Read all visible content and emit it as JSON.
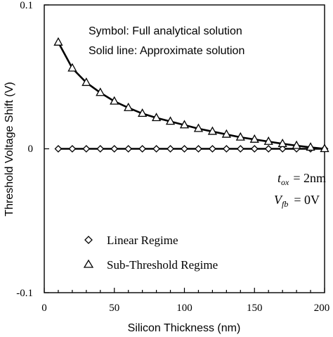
{
  "chart_data": {
    "type": "line",
    "xlabel": "Silicon Thickness (nm)",
    "ylabel": "Threshold Voltage Shift (V)",
    "xlim": [
      0,
      200
    ],
    "ylim": [
      -0.1,
      0.1
    ],
    "x_ticks": [
      "0",
      "50",
      "100",
      "150",
      "200"
    ],
    "y_ticks": [
      "0.1",
      "0",
      "-0.1"
    ],
    "notes": [
      "Symbol: Full analytical solution",
      "Solid line: Approximate solution"
    ],
    "params": [
      {
        "sym": "t",
        "sub": "ox",
        "value": "= 2nm"
      },
      {
        "sym": "V",
        "sub": "fb",
        "value": "= 0V"
      }
    ],
    "series": [
      {
        "name": "Linear Regime",
        "marker": "diamond",
        "x": [
          10,
          20,
          30,
          40,
          50,
          60,
          70,
          80,
          90,
          100,
          110,
          120,
          130,
          140,
          150,
          160,
          170,
          180,
          190,
          200
        ],
        "y": [
          0,
          0,
          0,
          0,
          0,
          0,
          0,
          0,
          0,
          0,
          0,
          0,
          0,
          0,
          0,
          0,
          0,
          0,
          0,
          0
        ]
      },
      {
        "name": "Sub-Threshold Regime",
        "marker": "triangle",
        "x": [
          10,
          20,
          30,
          40,
          50,
          60,
          70,
          80,
          90,
          100,
          110,
          120,
          130,
          140,
          150,
          160,
          170,
          180,
          190,
          200
        ],
        "y": [
          0.074,
          0.056,
          0.046,
          0.039,
          0.033,
          0.0285,
          0.0245,
          0.0215,
          0.019,
          0.0165,
          0.014,
          0.012,
          0.01,
          0.008,
          0.0065,
          0.005,
          0.0035,
          0.0022,
          0.001,
          0.0
        ]
      }
    ]
  }
}
